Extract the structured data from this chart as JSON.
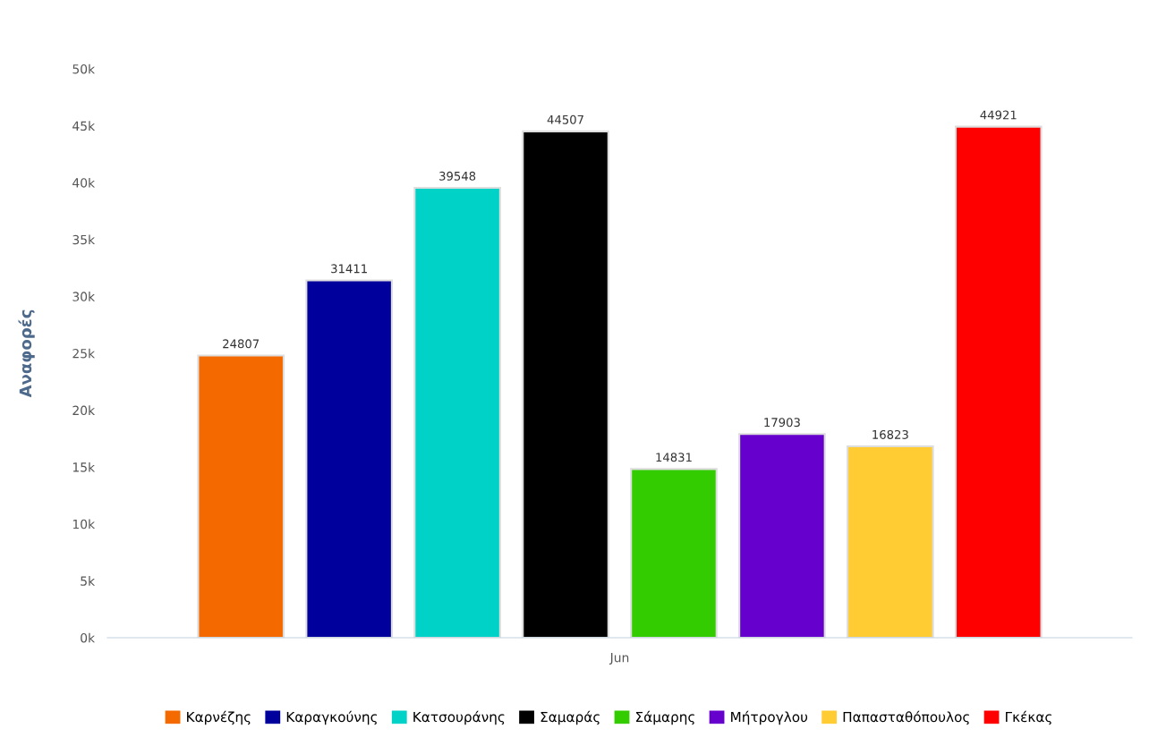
{
  "chart_data": {
    "type": "bar",
    "ylabel": "Αναφορές",
    "categories": [
      "Jun"
    ],
    "series": [
      {
        "name": "Καρνέζης",
        "color": "#f46a00",
        "values": [
          24807
        ]
      },
      {
        "name": "Καραγκούνης",
        "color": "#00009c",
        "values": [
          31411
        ]
      },
      {
        "name": "Κατσουράνης",
        "color": "#00d2c8",
        "values": [
          39548
        ]
      },
      {
        "name": "Σαμαράς",
        "color": "#000000",
        "values": [
          44507
        ]
      },
      {
        "name": "Σάμαρης",
        "color": "#33cc00",
        "values": [
          14831
        ]
      },
      {
        "name": "Μήτρογλου",
        "color": "#6600cc",
        "values": [
          17903
        ]
      },
      {
        "name": "Παπασταθόπουλος",
        "color": "#ffcc33",
        "values": [
          16823
        ]
      },
      {
        "name": "Γκέκας",
        "color": "#ff0000",
        "values": [
          44921
        ]
      }
    ],
    "ylim": [
      0,
      50000
    ],
    "yticks": [
      {
        "value": 0,
        "label": "0k"
      },
      {
        "value": 5000,
        "label": "5k"
      },
      {
        "value": 10000,
        "label": "10k"
      },
      {
        "value": 15000,
        "label": "15k"
      },
      {
        "value": 20000,
        "label": "20k"
      },
      {
        "value": 25000,
        "label": "25k"
      },
      {
        "value": 30000,
        "label": "30k"
      },
      {
        "value": 35000,
        "label": "35k"
      },
      {
        "value": 40000,
        "label": "40k"
      },
      {
        "value": 45000,
        "label": "45k"
      },
      {
        "value": 50000,
        "label": "50k"
      }
    ],
    "data_labels": true,
    "grid": false,
    "legend": "bottom"
  }
}
